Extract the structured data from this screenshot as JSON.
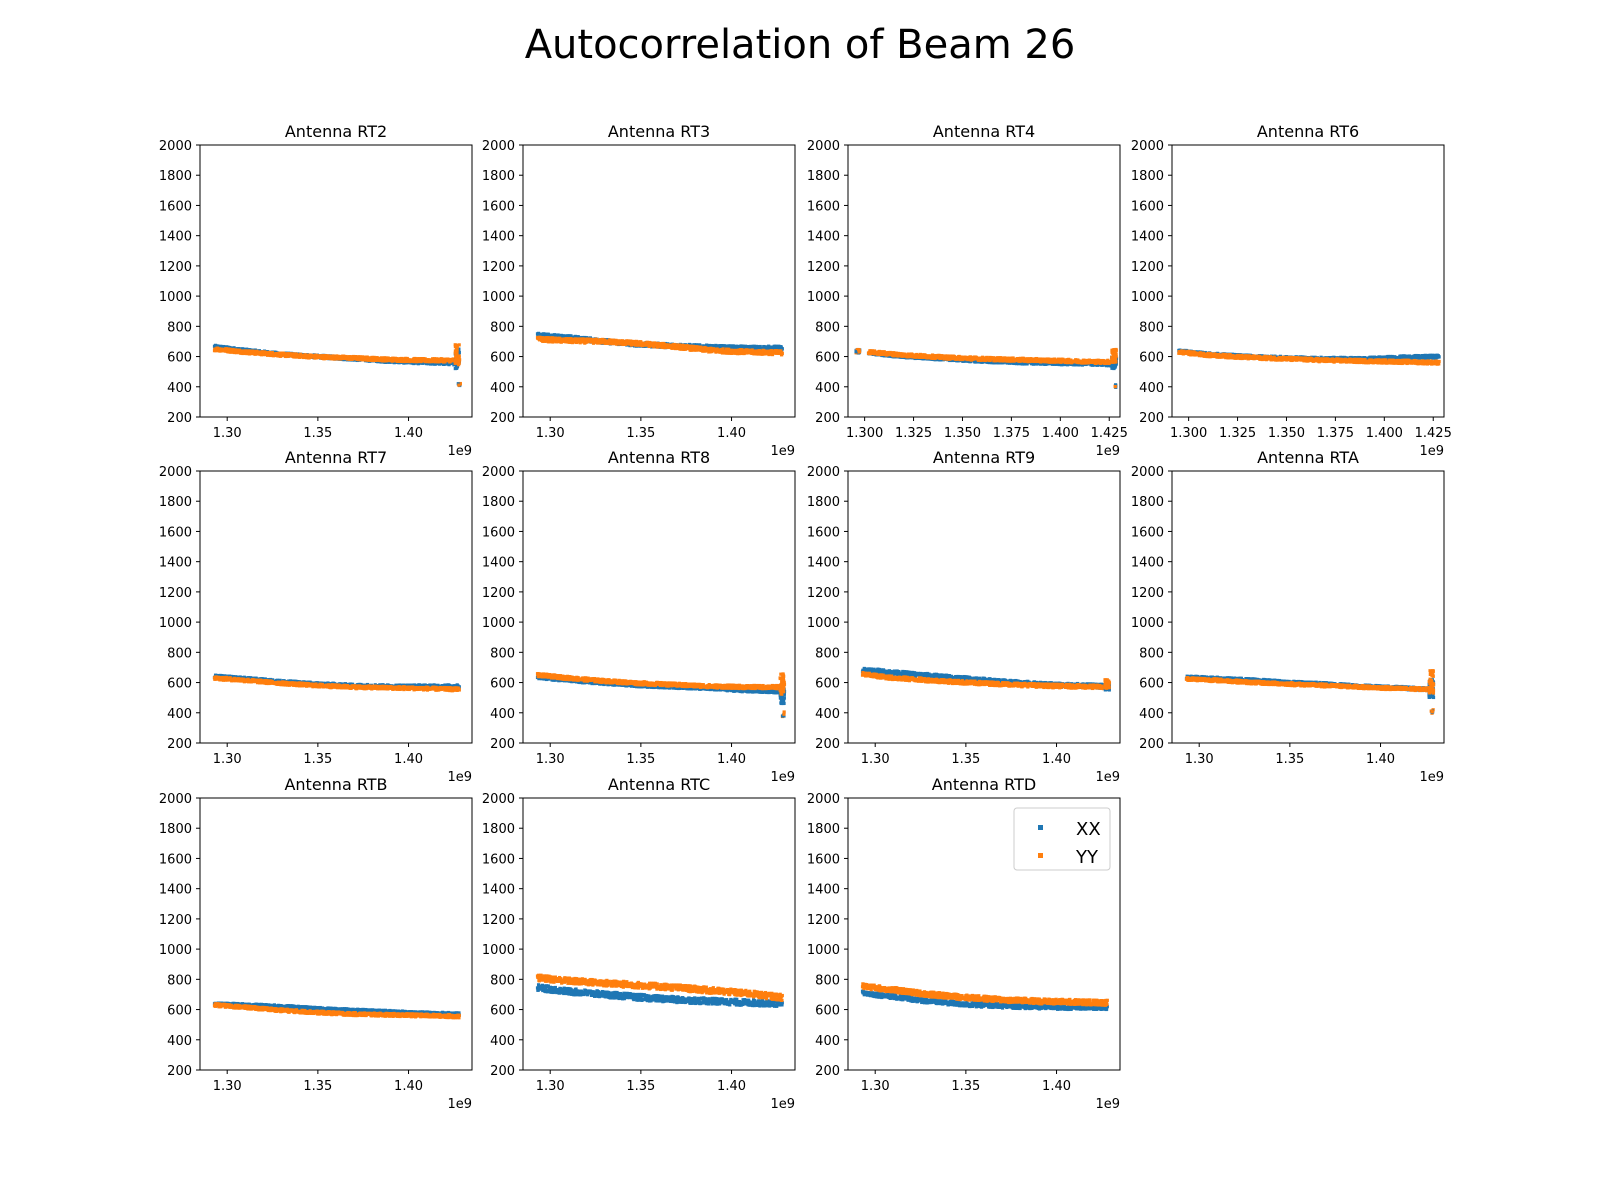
{
  "figure": {
    "title": "Autocorrelation of Beam 26",
    "offset_label": "1e9"
  },
  "legend": {
    "location": "upper right of Antenna RTD panel",
    "entries": [
      {
        "label": "XX",
        "color": "#1f77b4"
      },
      {
        "label": "YY",
        "color": "#ff7f0e"
      }
    ]
  },
  "chart_data": [
    {
      "type": "scatter",
      "title": "Antenna RT2",
      "ylim": [
        200,
        2000
      ],
      "yticks": [
        "200",
        "400",
        "600",
        "800",
        "1000",
        "1200",
        "1400",
        "1600",
        "1800",
        "2000"
      ],
      "xticks": [
        "1.30",
        "1.35",
        "1.40"
      ],
      "xtick_values": [
        1.3,
        1.35,
        1.4
      ],
      "xlim": [
        1.285,
        1.435
      ],
      "series": [
        {
          "name": "XX",
          "x": [
            1.293,
            1.31,
            1.33,
            1.35,
            1.37,
            1.39,
            1.41,
            1.425
          ],
          "y": [
            665,
            640,
            615,
            600,
            585,
            570,
            560,
            555
          ],
          "spread": 20
        },
        {
          "name": "YY",
          "x": [
            1.293,
            1.31,
            1.33,
            1.35,
            1.37,
            1.39,
            1.41,
            1.425
          ],
          "y": [
            650,
            630,
            612,
            598,
            590,
            580,
            575,
            575
          ],
          "spread": 22
        }
      ],
      "spikes": {
        "x": 1.427,
        "XX": [
          520,
          650
        ],
        "YY": [
          540,
          680
        ],
        "outlier_x": 1.428,
        "outlier_y": [
          405,
          425
        ]
      }
    },
    {
      "type": "scatter",
      "title": "Antenna RT3",
      "ylim": [
        200,
        2000
      ],
      "yticks": [
        "200",
        "400",
        "600",
        "800",
        "1000",
        "1200",
        "1400",
        "1600",
        "1800",
        "2000"
      ],
      "xticks": [
        "1.30",
        "1.35",
        "1.40"
      ],
      "xtick_values": [
        1.3,
        1.35,
        1.4
      ],
      "xlim": [
        1.285,
        1.435
      ],
      "series": [
        {
          "name": "XX",
          "x": [
            1.293,
            1.31,
            1.33,
            1.35,
            1.37,
            1.39,
            1.41,
            1.428
          ],
          "y": [
            740,
            725,
            700,
            680,
            670,
            660,
            655,
            655
          ],
          "spread": 28
        },
        {
          "name": "YY",
          "x": [
            1.293,
            1.31,
            1.33,
            1.35,
            1.37,
            1.39,
            1.41,
            1.428
          ],
          "y": [
            715,
            705,
            700,
            685,
            665,
            640,
            630,
            625
          ],
          "spread": 28
        }
      ]
    },
    {
      "type": "scatter",
      "title": "Antenna RT4",
      "ylim": [
        200,
        2000
      ],
      "yticks": [
        "200",
        "400",
        "600",
        "800",
        "1000",
        "1200",
        "1400",
        "1600",
        "1800",
        "2000"
      ],
      "xticks": [
        "1.300",
        "1.325",
        "1.350",
        "1.375",
        "1.400",
        "1.425"
      ],
      "xtick_values": [
        1.3,
        1.325,
        1.35,
        1.375,
        1.4,
        1.425
      ],
      "xlim": [
        1.2915,
        1.4305
      ],
      "series": [
        {
          "name": "XX",
          "x": [
            1.302,
            1.32,
            1.34,
            1.36,
            1.38,
            1.4,
            1.42,
            1.427
          ],
          "y": [
            625,
            600,
            585,
            570,
            560,
            555,
            550,
            545
          ],
          "spread": 18
        },
        {
          "name": "YY",
          "x": [
            1.302,
            1.32,
            1.34,
            1.36,
            1.38,
            1.4,
            1.42,
            1.427
          ],
          "y": [
            630,
            610,
            595,
            585,
            578,
            572,
            565,
            565
          ],
          "spread": 22
        }
      ],
      "extra_blob": {
        "x": [
          1.2955,
          1.2975
        ],
        "y": 635,
        "spread": 24
      },
      "spikes": {
        "x": 1.4275,
        "XX": [
          520,
          600
        ],
        "YY": [
          560,
          650
        ],
        "outlier_x": 1.428,
        "outlier_y": [
          395,
          415
        ]
      }
    },
    {
      "type": "scatter",
      "title": "Antenna RT6",
      "ylim": [
        200,
        2000
      ],
      "yticks": [
        "200",
        "400",
        "600",
        "800",
        "1000",
        "1200",
        "1400",
        "1600",
        "1800",
        "2000"
      ],
      "xticks": [
        "1.300",
        "1.325",
        "1.350",
        "1.375",
        "1.400",
        "1.425"
      ],
      "xtick_values": [
        1.3,
        1.325,
        1.35,
        1.375,
        1.4,
        1.425
      ],
      "xlim": [
        1.2915,
        1.4305
      ],
      "series": [
        {
          "name": "XX",
          "x": [
            1.295,
            1.31,
            1.33,
            1.35,
            1.37,
            1.39,
            1.41,
            1.428
          ],
          "y": [
            635,
            615,
            600,
            590,
            585,
            585,
            595,
            600
          ],
          "spread": 20
        },
        {
          "name": "YY",
          "x": [
            1.295,
            1.31,
            1.33,
            1.35,
            1.37,
            1.39,
            1.41,
            1.428
          ],
          "y": [
            630,
            610,
            595,
            585,
            575,
            570,
            565,
            560
          ],
          "spread": 22
        }
      ]
    },
    {
      "type": "scatter",
      "title": "Antenna RT7",
      "ylim": [
        200,
        2000
      ],
      "yticks": [
        "200",
        "400",
        "600",
        "800",
        "1000",
        "1200",
        "1400",
        "1600",
        "1800",
        "2000"
      ],
      "xticks": [
        "1.30",
        "1.35",
        "1.40"
      ],
      "xtick_values": [
        1.3,
        1.35,
        1.4
      ],
      "xlim": [
        1.285,
        1.435
      ],
      "series": [
        {
          "name": "XX",
          "x": [
            1.293,
            1.31,
            1.33,
            1.35,
            1.37,
            1.39,
            1.41,
            1.428
          ],
          "y": [
            640,
            625,
            605,
            590,
            580,
            575,
            575,
            575
          ],
          "spread": 20
        },
        {
          "name": "YY",
          "x": [
            1.293,
            1.31,
            1.33,
            1.35,
            1.37,
            1.39,
            1.41,
            1.428
          ],
          "y": [
            630,
            615,
            595,
            580,
            570,
            565,
            560,
            555
          ],
          "spread": 20
        }
      ]
    },
    {
      "type": "scatter",
      "title": "Antenna RT8",
      "ylim": [
        200,
        2000
      ],
      "yticks": [
        "200",
        "400",
        "600",
        "800",
        "1000",
        "1200",
        "1400",
        "1600",
        "1800",
        "2000"
      ],
      "xticks": [
        "1.30",
        "1.35",
        "1.40"
      ],
      "xtick_values": [
        1.3,
        1.35,
        1.4
      ],
      "xlim": [
        1.285,
        1.435
      ],
      "series": [
        {
          "name": "XX",
          "x": [
            1.293,
            1.31,
            1.33,
            1.35,
            1.37,
            1.39,
            1.41,
            1.427
          ],
          "y": [
            635,
            615,
            595,
            580,
            570,
            560,
            545,
            540
          ],
          "spread": 18
        },
        {
          "name": "YY",
          "x": [
            1.293,
            1.31,
            1.33,
            1.35,
            1.37,
            1.39,
            1.41,
            1.427
          ],
          "y": [
            650,
            630,
            610,
            595,
            585,
            575,
            570,
            570
          ],
          "spread": 22
        }
      ],
      "spikes": {
        "x": 1.428,
        "XX": [
          460,
          560
        ],
        "YY": [
          520,
          660
        ],
        "outlier_x": 1.4285,
        "outlier_y": [
          375,
          410
        ]
      }
    },
    {
      "type": "scatter",
      "title": "Antenna RT9",
      "ylim": [
        200,
        2000
      ],
      "yticks": [
        "200",
        "400",
        "600",
        "800",
        "1000",
        "1200",
        "1400",
        "1600",
        "1800",
        "2000"
      ],
      "xticks": [
        "1.30",
        "1.35",
        "1.40"
      ],
      "xtick_values": [
        1.3,
        1.35,
        1.4
      ],
      "xlim": [
        1.285,
        1.435
      ],
      "series": [
        {
          "name": "XX",
          "x": [
            1.293,
            1.31,
            1.33,
            1.35,
            1.37,
            1.39,
            1.41,
            1.428
          ],
          "y": [
            685,
            665,
            645,
            625,
            605,
            590,
            580,
            575
          ],
          "spread": 28
        },
        {
          "name": "YY",
          "x": [
            1.293,
            1.31,
            1.33,
            1.35,
            1.37,
            1.39,
            1.41,
            1.428
          ],
          "y": [
            655,
            630,
            615,
            600,
            590,
            580,
            575,
            570
          ],
          "spread": 24
        }
      ],
      "spikes": {
        "x": 1.428,
        "XX": [
          550,
          600
        ],
        "YY": [
          560,
          620
        ]
      }
    },
    {
      "type": "scatter",
      "title": "Antenna RTA",
      "ylim": [
        200,
        2000
      ],
      "yticks": [
        "200",
        "400",
        "600",
        "800",
        "1000",
        "1200",
        "1400",
        "1600",
        "1800",
        "2000"
      ],
      "xticks": [
        "1.30",
        "1.35",
        "1.40"
      ],
      "xtick_values": [
        1.3,
        1.35,
        1.4
      ],
      "xlim": [
        1.285,
        1.435
      ],
      "series": [
        {
          "name": "XX",
          "x": [
            1.293,
            1.31,
            1.33,
            1.35,
            1.37,
            1.39,
            1.41,
            1.427
          ],
          "y": [
            635,
            625,
            615,
            600,
            590,
            575,
            565,
            555
          ],
          "spread": 20
        },
        {
          "name": "YY",
          "x": [
            1.293,
            1.31,
            1.33,
            1.35,
            1.37,
            1.39,
            1.41,
            1.427
          ],
          "y": [
            625,
            615,
            600,
            590,
            580,
            570,
            560,
            555
          ],
          "spread": 20
        }
      ],
      "spikes": {
        "x": 1.428,
        "XX": [
          500,
          620
        ],
        "YY": [
          530,
          680
        ],
        "outlier_x": 1.4285,
        "outlier_y": [
          395,
          420
        ]
      }
    },
    {
      "type": "scatter",
      "title": "Antenna RTB",
      "ylim": [
        200,
        2000
      ],
      "yticks": [
        "200",
        "400",
        "600",
        "800",
        "1000",
        "1200",
        "1400",
        "1600",
        "1800",
        "2000"
      ],
      "xticks": [
        "1.30",
        "1.35",
        "1.40"
      ],
      "xtick_values": [
        1.3,
        1.35,
        1.4
      ],
      "xlim": [
        1.285,
        1.435
      ],
      "series": [
        {
          "name": "XX",
          "x": [
            1.293,
            1.31,
            1.33,
            1.35,
            1.37,
            1.39,
            1.41,
            1.428
          ],
          "y": [
            635,
            630,
            620,
            605,
            595,
            585,
            575,
            570
          ],
          "spread": 18
        },
        {
          "name": "YY",
          "x": [
            1.293,
            1.31,
            1.33,
            1.35,
            1.37,
            1.39,
            1.41,
            1.428
          ],
          "y": [
            630,
            615,
            595,
            580,
            570,
            565,
            560,
            555
          ],
          "spread": 20
        }
      ]
    },
    {
      "type": "scatter",
      "title": "Antenna RTC",
      "ylim": [
        200,
        2000
      ],
      "yticks": [
        "200",
        "400",
        "600",
        "800",
        "1000",
        "1200",
        "1400",
        "1600",
        "1800",
        "2000"
      ],
      "xticks": [
        "1.30",
        "1.35",
        "1.40"
      ],
      "xtick_values": [
        1.3,
        1.35,
        1.4
      ],
      "xlim": [
        1.285,
        1.435
      ],
      "series": [
        {
          "name": "XX",
          "x": [
            1.293,
            1.31,
            1.33,
            1.35,
            1.37,
            1.39,
            1.41,
            1.428
          ],
          "y": [
            745,
            720,
            700,
            680,
            665,
            655,
            645,
            640
          ],
          "spread": 40
        },
        {
          "name": "YY",
          "x": [
            1.293,
            1.31,
            1.33,
            1.35,
            1.37,
            1.39,
            1.41,
            1.428
          ],
          "y": [
            810,
            790,
            775,
            760,
            745,
            725,
            705,
            680
          ],
          "spread": 40
        }
      ]
    },
    {
      "type": "scatter",
      "title": "Antenna RTD",
      "ylim": [
        200,
        2000
      ],
      "yticks": [
        "200",
        "400",
        "600",
        "800",
        "1000",
        "1200",
        "1400",
        "1600",
        "1800",
        "2000"
      ],
      "xticks": [
        "1.30",
        "1.35",
        "1.40"
      ],
      "xtick_values": [
        1.3,
        1.35,
        1.4
      ],
      "xlim": [
        1.285,
        1.435
      ],
      "series": [
        {
          "name": "XX",
          "x": [
            1.293,
            1.31,
            1.33,
            1.35,
            1.37,
            1.39,
            1.41,
            1.428
          ],
          "y": [
            710,
            685,
            655,
            635,
            625,
            618,
            615,
            615
          ],
          "spread": 30
        },
        {
          "name": "YY",
          "x": [
            1.293,
            1.31,
            1.33,
            1.35,
            1.37,
            1.39,
            1.41,
            1.428
          ],
          "y": [
            755,
            730,
            700,
            680,
            665,
            655,
            650,
            645
          ],
          "spread": 34
        }
      ]
    }
  ]
}
